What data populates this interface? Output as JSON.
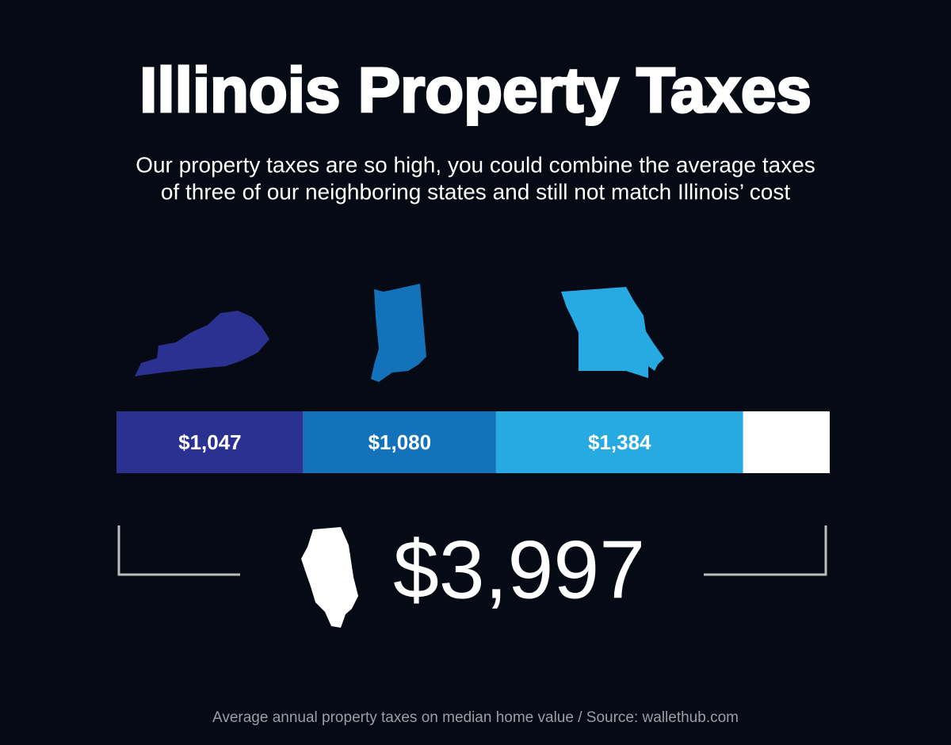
{
  "chart_data": {
    "type": "bar",
    "title": "Illinois Property Taxes",
    "subtitle": [
      "Our property taxes are so high, you could combine the average taxes",
      "of three of our neighboring states and still not match Illinois’ cost"
    ],
    "values": [
      1047,
      1080,
      1384
    ],
    "value_labels": [
      "$1,047",
      "$1,080",
      "$1,384"
    ],
    "colors": [
      "#2b3190",
      "#1472bb",
      "#27a9e1"
    ],
    "total": 3997,
    "total_label": "$3,997",
    "total_color": "#ffffff",
    "source": "Average annual property taxes on median home value / Source: wallethub.com"
  }
}
